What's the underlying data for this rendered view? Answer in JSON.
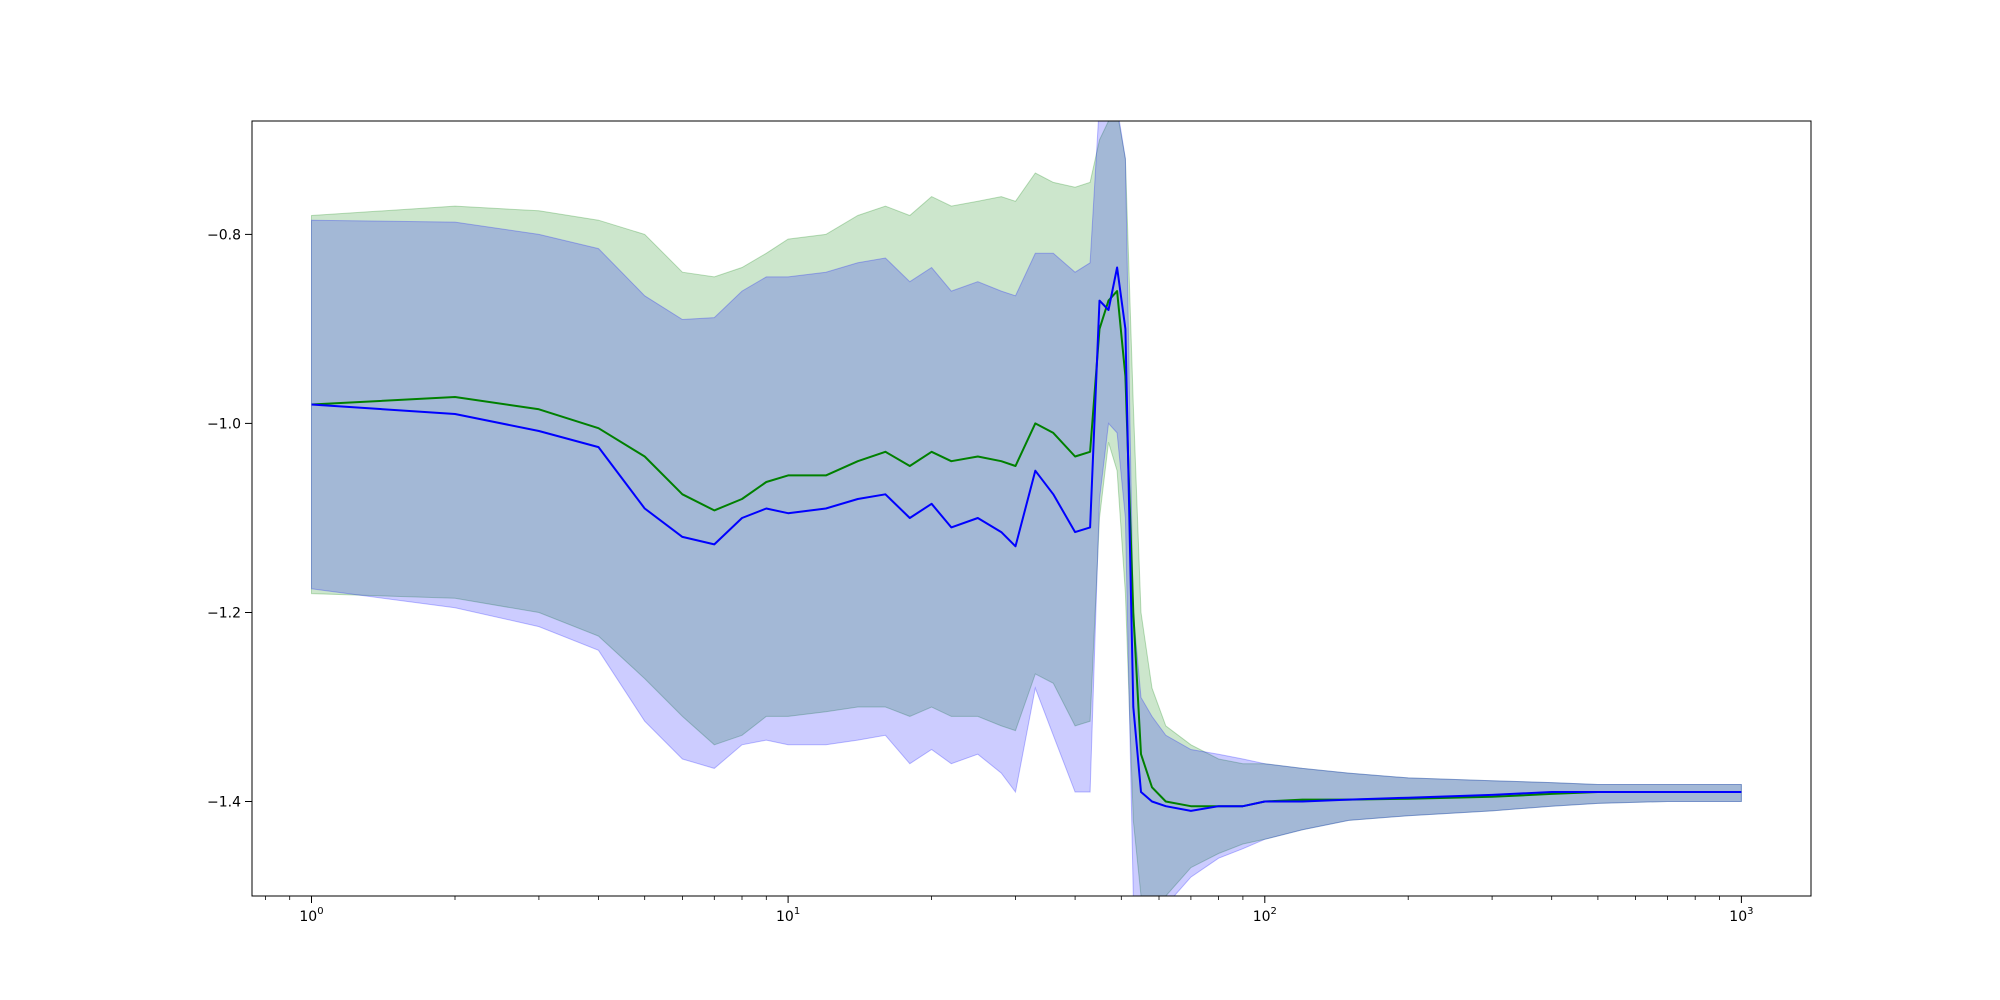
{
  "chart_data": {
    "type": "line",
    "title": "",
    "xlabel": "",
    "ylabel": "",
    "xscale": "log",
    "xlim": [
      0.75,
      1400
    ],
    "ylim": [
      -1.5,
      -0.68
    ],
    "grid": false,
    "legend": "none",
    "x_ticks": [
      {
        "value": 1,
        "base": "10",
        "exp": "0"
      },
      {
        "value": 10,
        "base": "10",
        "exp": "1"
      },
      {
        "value": 100,
        "base": "10",
        "exp": "2"
      },
      {
        "value": 1000,
        "base": "10",
        "exp": "3"
      }
    ],
    "y_ticks": [
      {
        "value": -0.8,
        "label": "−0.8"
      },
      {
        "value": -1.0,
        "label": "−1.0"
      },
      {
        "value": -1.2,
        "label": "−1.2"
      },
      {
        "value": -1.4,
        "label": "−1.4"
      }
    ],
    "x": [
      1,
      2,
      3,
      4,
      5,
      6,
      7,
      8,
      9,
      10,
      12,
      14,
      16,
      18,
      20,
      22,
      25,
      28,
      30,
      33,
      36,
      40,
      43,
      45,
      47,
      49,
      51,
      53,
      55,
      58,
      62,
      70,
      80,
      90,
      100,
      120,
      150,
      200,
      300,
      400,
      500,
      700,
      1000
    ],
    "series": [
      {
        "color": "#008000",
        "band_color": "#008000",
        "mean": [
          -0.98,
          -0.972,
          -0.985,
          -1.005,
          -1.035,
          -1.075,
          -1.092,
          -1.08,
          -1.062,
          -1.055,
          -1.055,
          -1.04,
          -1.03,
          -1.045,
          -1.03,
          -1.04,
          -1.035,
          -1.04,
          -1.045,
          -1.0,
          -1.01,
          -1.035,
          -1.03,
          -0.9,
          -0.87,
          -0.86,
          -0.95,
          -1.2,
          -1.35,
          -1.385,
          -1.4,
          -1.405,
          -1.405,
          -1.405,
          -1.4,
          -1.398,
          -1.398,
          -1.397,
          -1.395,
          -1.392,
          -1.39,
          -1.39,
          -1.39
        ],
        "upper": [
          -0.78,
          -0.77,
          -0.775,
          -0.785,
          -0.8,
          -0.84,
          -0.845,
          -0.835,
          -0.82,
          -0.805,
          -0.8,
          -0.78,
          -0.77,
          -0.78,
          -0.76,
          -0.77,
          -0.765,
          -0.76,
          -0.765,
          -0.735,
          -0.745,
          -0.75,
          -0.745,
          -0.7,
          -0.68,
          -0.67,
          -0.72,
          -0.98,
          -1.2,
          -1.28,
          -1.32,
          -1.34,
          -1.355,
          -1.36,
          -1.36,
          -1.365,
          -1.37,
          -1.375,
          -1.378,
          -1.38,
          -1.382,
          -1.382,
          -1.382
        ],
        "lower": [
          -1.18,
          -1.185,
          -1.2,
          -1.225,
          -1.27,
          -1.31,
          -1.34,
          -1.33,
          -1.31,
          -1.31,
          -1.305,
          -1.3,
          -1.3,
          -1.31,
          -1.3,
          -1.31,
          -1.31,
          -1.32,
          -1.325,
          -1.265,
          -1.275,
          -1.32,
          -1.315,
          -1.1,
          -1.02,
          -1.05,
          -1.18,
          -1.42,
          -1.5,
          -1.51,
          -1.5,
          -1.47,
          -1.455,
          -1.445,
          -1.44,
          -1.43,
          -1.42,
          -1.415,
          -1.41,
          -1.405,
          -1.402,
          -1.4,
          -1.4
        ]
      },
      {
        "color": "#0000ff",
        "band_color": "#0000ff",
        "mean": [
          -0.98,
          -0.99,
          -1.008,
          -1.025,
          -1.09,
          -1.12,
          -1.128,
          -1.1,
          -1.09,
          -1.095,
          -1.09,
          -1.08,
          -1.075,
          -1.1,
          -1.085,
          -1.11,
          -1.1,
          -1.115,
          -1.13,
          -1.05,
          -1.075,
          -1.115,
          -1.11,
          -0.87,
          -0.88,
          -0.835,
          -0.9,
          -1.3,
          -1.39,
          -1.4,
          -1.405,
          -1.41,
          -1.405,
          -1.405,
          -1.4,
          -1.4,
          -1.398,
          -1.396,
          -1.393,
          -1.39,
          -1.39,
          -1.39,
          -1.39
        ],
        "upper": [
          -0.785,
          -0.787,
          -0.8,
          -0.815,
          -0.865,
          -0.89,
          -0.888,
          -0.86,
          -0.845,
          -0.845,
          -0.84,
          -0.83,
          -0.825,
          -0.85,
          -0.835,
          -0.86,
          -0.85,
          -0.86,
          -0.865,
          -0.82,
          -0.82,
          -0.84,
          -0.83,
          -0.66,
          -0.68,
          -0.665,
          -0.72,
          -1.2,
          -1.29,
          -1.31,
          -1.33,
          -1.345,
          -1.35,
          -1.355,
          -1.36,
          -1.365,
          -1.37,
          -1.375,
          -1.378,
          -1.38,
          -1.382,
          -1.382,
          -1.382
        ],
        "lower": [
          -1.175,
          -1.195,
          -1.215,
          -1.24,
          -1.315,
          -1.355,
          -1.365,
          -1.34,
          -1.335,
          -1.34,
          -1.34,
          -1.335,
          -1.33,
          -1.36,
          -1.345,
          -1.36,
          -1.35,
          -1.37,
          -1.39,
          -1.28,
          -1.33,
          -1.39,
          -1.39,
          -1.08,
          -1.0,
          -1.01,
          -1.1,
          -1.5,
          -1.53,
          -1.52,
          -1.51,
          -1.48,
          -1.46,
          -1.45,
          -1.44,
          -1.43,
          -1.42,
          -1.415,
          -1.41,
          -1.405,
          -1.402,
          -1.4,
          -1.4
        ]
      }
    ]
  }
}
